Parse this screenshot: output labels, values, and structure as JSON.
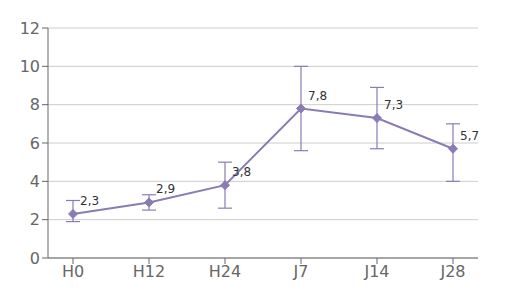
{
  "chart_data": {
    "type": "line",
    "categories": [
      "H0",
      "H12",
      "H24",
      "J7",
      "J14",
      "J28"
    ],
    "values": [
      2.3,
      2.9,
      3.8,
      7.8,
      7.3,
      5.7
    ],
    "error_lower": [
      0.4,
      0.4,
      1.2,
      2.2,
      1.6,
      1.7
    ],
    "error_upper": [
      0.7,
      0.4,
      1.2,
      2.2,
      1.6,
      1.3
    ],
    "value_labels": [
      "2,3",
      "2,9",
      "3,8",
      "7,8",
      "7,3",
      "5,7"
    ],
    "data_labels": true,
    "color": "#8B7BB5",
    "marker": "diamond",
    "ylim": [
      0,
      12
    ],
    "yticks": [
      0,
      2,
      4,
      6,
      8,
      10,
      12
    ],
    "grid": "y"
  }
}
